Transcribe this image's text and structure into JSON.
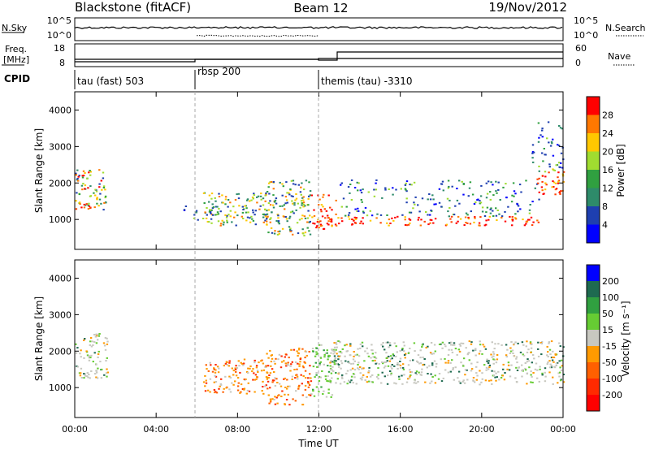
{
  "header": {
    "station": "Blackstone (fitACF)",
    "beam": "Beam 12",
    "date": "19/Nov/2012"
  },
  "labels": {
    "nsky": "N.Sky",
    "nsearch": "N.Search",
    "freq_line1": "Freq.",
    "freq_line2": "[MHz]",
    "nave": "Nave",
    "cpid": "CPID",
    "ylabel": "Slant Range [km]",
    "xlabel": "Time UT"
  },
  "noise_axis": {
    "left_ticks": [
      "10^5",
      "10^0"
    ],
    "right_ticks": [
      "10^5",
      "10^0"
    ]
  },
  "freq_axis": {
    "left_ticks": [
      "18",
      "8"
    ],
    "right_ticks": [
      "60",
      "0"
    ]
  },
  "cpid_segments": [
    {
      "start_hour": 0,
      "label": "tau (fast) 503"
    },
    {
      "start_hour": 6,
      "label": "rbsp 200"
    },
    {
      "start_hour": 12,
      "label": "themis (tau) -3310"
    }
  ],
  "chart_data": [
    {
      "type": "heatmap",
      "title": "Power",
      "ylabel": "Slant Range [km]",
      "xlabel": "",
      "xlim": [
        0,
        24
      ],
      "ylim": [
        180,
        4500
      ],
      "x_ticks": [
        0,
        4,
        8,
        12,
        16,
        20,
        24
      ],
      "x_tick_labels": [
        "00:00",
        "04:00",
        "08:00",
        "12:00",
        "16:00",
        "20:00",
        "00:00"
      ],
      "y_ticks": [
        1000,
        2000,
        3000,
        4000
      ],
      "y_tick_labels": [
        "1000",
        "2000",
        "3000",
        "4000"
      ],
      "colorbar": {
        "label": "Power [dB]",
        "ticks": [
          "28",
          "24",
          "20",
          "16",
          "12",
          "8",
          "4"
        ],
        "colors": [
          "#ff0000",
          "#ff7800",
          "#ffc800",
          "#a0dc30",
          "#30a040",
          "#2e8b6a",
          "#1e3fb0",
          "#0000ff"
        ]
      },
      "regions": [
        {
          "x": [
            0.0,
            1.5
          ],
          "y": [
            1250,
            2400
          ],
          "level": "mixed"
        },
        {
          "x": [
            0.0,
            0.9
          ],
          "y": [
            1300,
            1500
          ],
          "level": "strong"
        },
        {
          "x": [
            5.3,
            7.0
          ],
          "y": [
            950,
            1450
          ],
          "level": "weak"
        },
        {
          "x": [
            6.3,
            9.6
          ],
          "y": [
            850,
            1750
          ],
          "level": "moderate"
        },
        {
          "x": [
            9.3,
            11.6
          ],
          "y": [
            550,
            2100
          ],
          "level": "moderate"
        },
        {
          "x": [
            11.6,
            12.8
          ],
          "y": [
            750,
            1700
          ],
          "level": "strong"
        },
        {
          "x": [
            12.3,
            22.8
          ],
          "y": [
            850,
            1100
          ],
          "level": "strong"
        },
        {
          "x": [
            13.0,
            22.8
          ],
          "y": [
            1100,
            2100
          ],
          "level": "weak"
        },
        {
          "x": [
            22.6,
            24.0
          ],
          "y": [
            1700,
            2400
          ],
          "level": "strong"
        },
        {
          "x": [
            22.3,
            24.0
          ],
          "y": [
            2300,
            3800
          ],
          "level": "weak"
        }
      ]
    },
    {
      "type": "heatmap",
      "title": "Velocity",
      "ylabel": "Slant Range [km]",
      "xlabel": "Time UT",
      "xlim": [
        0,
        24
      ],
      "ylim": [
        180,
        4500
      ],
      "x_ticks": [
        0,
        4,
        8,
        12,
        16,
        20,
        24
      ],
      "x_tick_labels": [
        "00:00",
        "04:00",
        "08:00",
        "12:00",
        "16:00",
        "20:00",
        "00:00"
      ],
      "y_ticks": [
        1000,
        2000,
        3000,
        4000
      ],
      "y_tick_labels": [
        "1000",
        "2000",
        "3000",
        "4000"
      ],
      "colorbar": {
        "label": "Velocity [m s⁻¹]",
        "ticks": [
          "200",
          "100",
          "50",
          "15",
          "-15",
          "-50",
          "-100",
          "-200"
        ],
        "colors": [
          "#0000ff",
          "#1e6a50",
          "#30a040",
          "#66cc33",
          "#c8c8c0",
          "#ff9a00",
          "#ff6000",
          "#ff2a00",
          "#ff0000"
        ]
      },
      "regions": [
        {
          "x": [
            0.0,
            1.6
          ],
          "y": [
            1250,
            2500
          ],
          "level": "ground"
        },
        {
          "x": [
            6.3,
            9.6
          ],
          "y": [
            850,
            1800
          ],
          "level": "away"
        },
        {
          "x": [
            9.3,
            11.6
          ],
          "y": [
            550,
            2100
          ],
          "level": "away"
        },
        {
          "x": [
            11.6,
            12.8
          ],
          "y": [
            750,
            2200
          ],
          "level": "toward"
        },
        {
          "x": [
            12.5,
            24.0
          ],
          "y": [
            1100,
            2300
          ],
          "level": "ground"
        }
      ]
    }
  ]
}
